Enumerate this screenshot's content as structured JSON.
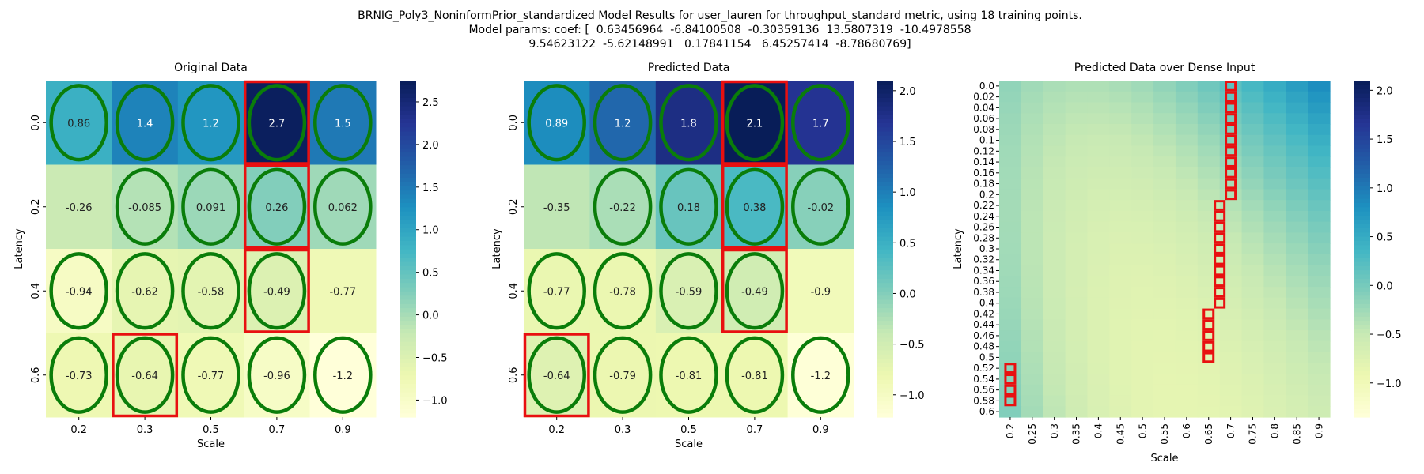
{
  "header": {
    "line1": "BRNIG_Poly3_NoninformPrior_standardized Model Results for user_lauren for throughput_standard metric, using 18 training points.",
    "line2": "Model params: coef: [  0.63456964  -6.84100508  -0.30359136  13.5807319  -10.4978558",
    "line3": "9.54623122  -5.62148991   0.17841154   6.45257414  -8.78680769]"
  },
  "chart_data": [
    {
      "type": "heatmap",
      "title": "Original Data",
      "xlabel": "Scale",
      "ylabel": "Latency",
      "x_ticks": [
        "0.2",
        "0.3",
        "0.5",
        "0.7",
        "0.9"
      ],
      "y_ticks": [
        "0.0",
        "0.2",
        "0.4",
        "0.6"
      ],
      "values": [
        [
          0.86,
          1.4,
          1.2,
          2.7,
          1.5
        ],
        [
          -0.26,
          -0.085,
          0.091,
          0.26,
          0.062
        ],
        [
          -0.94,
          -0.62,
          -0.58,
          -0.49,
          -0.77
        ],
        [
          -0.73,
          -0.64,
          -0.77,
          -0.96,
          -1.2
        ]
      ],
      "labels": [
        [
          "0.86",
          "1.4",
          "1.2",
          "2.7",
          "1.5"
        ],
        [
          "-0.26",
          "-0.085",
          "0.091",
          "0.26",
          "0.062"
        ],
        [
          "-0.94",
          "-0.62",
          "-0.58",
          "-0.49",
          "-0.77"
        ],
        [
          "-0.73",
          "-0.64",
          "-0.77",
          "-0.96",
          "-1.2"
        ]
      ],
      "vmin": -1.2,
      "vmax": 2.75,
      "colorbar_ticks": [
        -1.0,
        -0.5,
        0.0,
        0.5,
        1.0,
        1.5,
        2.0,
        2.5
      ],
      "colorbar_labels": [
        "−1.0",
        "−0.5",
        "0.0",
        "0.5",
        "1.0",
        "1.5",
        "2.0",
        "2.5"
      ],
      "circled_cells": [
        [
          0,
          0
        ],
        [
          0,
          1
        ],
        [
          0,
          2
        ],
        [
          0,
          3
        ],
        [
          0,
          4
        ],
        [
          1,
          1
        ],
        [
          1,
          2
        ],
        [
          1,
          3
        ],
        [
          1,
          4
        ],
        [
          2,
          0
        ],
        [
          2,
          1
        ],
        [
          2,
          2
        ],
        [
          2,
          3
        ],
        [
          3,
          0
        ],
        [
          3,
          1
        ],
        [
          3,
          2
        ],
        [
          3,
          3
        ],
        [
          3,
          4
        ]
      ],
      "boxed_cells": [
        [
          0,
          3
        ],
        [
          1,
          3
        ],
        [
          2,
          3
        ],
        [
          3,
          1
        ]
      ],
      "colormap": "YlGnBu"
    },
    {
      "type": "heatmap",
      "title": "Predicted Data",
      "xlabel": "Scale",
      "ylabel": "Latency",
      "x_ticks": [
        "0.2",
        "0.3",
        "0.5",
        "0.7",
        "0.9"
      ],
      "y_ticks": [
        "0.0",
        "0.2",
        "0.4",
        "0.6"
      ],
      "values": [
        [
          0.89,
          1.2,
          1.8,
          2.1,
          1.7
        ],
        [
          -0.35,
          -0.22,
          0.18,
          0.38,
          -0.02
        ],
        [
          -0.77,
          -0.78,
          -0.59,
          -0.49,
          -0.9
        ],
        [
          -0.64,
          -0.79,
          -0.81,
          -0.81,
          -1.2
        ]
      ],
      "labels": [
        [
          "0.89",
          "1.2",
          "1.8",
          "2.1",
          "1.7"
        ],
        [
          "-0.35",
          "-0.22",
          "0.18",
          "0.38",
          "-0.02"
        ],
        [
          "-0.77",
          "-0.78",
          "-0.59",
          "-0.49",
          "-0.9"
        ],
        [
          "-0.64",
          "-0.79",
          "-0.81",
          "-0.81",
          "-1.2"
        ]
      ],
      "vmin": -1.22,
      "vmax": 2.1,
      "colorbar_ticks": [
        -1.0,
        -0.5,
        0.0,
        0.5,
        1.0,
        1.5,
        2.0
      ],
      "colorbar_labels": [
        "−1.0",
        "−0.5",
        "0.0",
        "0.5",
        "1.0",
        "1.5",
        "2.0"
      ],
      "circled_cells": [
        [
          0,
          0
        ],
        [
          0,
          1
        ],
        [
          0,
          2
        ],
        [
          0,
          3
        ],
        [
          0,
          4
        ],
        [
          1,
          1
        ],
        [
          1,
          2
        ],
        [
          1,
          3
        ],
        [
          1,
          4
        ],
        [
          2,
          0
        ],
        [
          2,
          1
        ],
        [
          2,
          2
        ],
        [
          2,
          3
        ],
        [
          3,
          0
        ],
        [
          3,
          1
        ],
        [
          3,
          2
        ],
        [
          3,
          3
        ],
        [
          3,
          4
        ]
      ],
      "boxed_cells": [
        [
          0,
          3
        ],
        [
          1,
          3
        ],
        [
          2,
          3
        ],
        [
          3,
          0
        ]
      ],
      "colormap": "YlGnBu"
    },
    {
      "type": "heatmap",
      "title": "Predicted Data over Dense Input",
      "xlabel": "Scale",
      "ylabel": "Latency",
      "x_ticks": [
        "0.2",
        "0.25",
        "0.3",
        "0.35",
        "0.4",
        "0.45",
        "0.5",
        "0.55",
        "0.6",
        "0.65",
        "0.7",
        "0.75",
        "0.8",
        "0.85",
        "0.9"
      ],
      "y_ticks": [
        "0.0",
        "0.02",
        "0.04",
        "0.06",
        "0.08",
        "0.1",
        "0.12",
        "0.14",
        "0.16",
        "0.18",
        "0.2",
        "0.22",
        "0.24",
        "0.26",
        "0.28",
        "0.3",
        "0.32",
        "0.34",
        "0.36",
        "0.38",
        "0.4",
        "0.42",
        "0.44",
        "0.46",
        "0.48",
        "0.5",
        "0.52",
        "0.54",
        "0.56",
        "0.58",
        "0.6"
      ],
      "model": "poly3",
      "coef": [
        0.63456964,
        -6.84100508,
        -0.30359136,
        13.5807319,
        -10.4978558,
        9.54623122,
        -5.62148991,
        0.17841154,
        6.45257414,
        -8.78680769
      ],
      "vmin": -1.35,
      "vmax": 2.1,
      "colorbar_ticks": [
        -1.0,
        -0.5,
        0.0,
        0.5,
        1.0,
        1.5,
        2.0
      ],
      "colorbar_labels": [
        "−1.0",
        "−0.5",
        "0.0",
        "0.5",
        "1.0",
        "1.5",
        "2.0"
      ],
      "max_path": [
        {
          "x": 0.7,
          "y0": 0.0,
          "y1": 0.22
        },
        {
          "x": 0.675,
          "y0": 0.22,
          "y1": 0.42
        },
        {
          "x": 0.65,
          "y0": 0.42,
          "y1": 0.52
        },
        {
          "x": 0.2,
          "y0": 0.52,
          "y1": 0.6
        }
      ],
      "colormap": "YlGnBu"
    }
  ]
}
